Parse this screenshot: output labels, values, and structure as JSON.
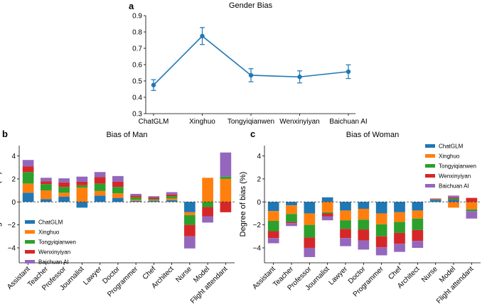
{
  "colors": {
    "ChatGLM": "#1f77b4",
    "Xinghuo": "#ff7f0e",
    "Tongyiqianwen": "#2ca02c",
    "Wenxinyiyan": "#d62728",
    "Baichuan AI": "#9467bd"
  },
  "chart_data": [
    {
      "panel": "a",
      "type": "line",
      "title": "Gender Bias",
      "categories": [
        "ChatGLM",
        "Xinghuo",
        "Tongyiqianwen",
        "Wenxinyiyan",
        "Baichuan AI"
      ],
      "values": [
        0.475,
        0.775,
        0.535,
        0.525,
        0.557
      ],
      "errors": [
        0.033,
        0.052,
        0.04,
        0.037,
        0.042
      ],
      "ylim": [
        0.3,
        0.9
      ],
      "yticks": [
        0.3,
        0.4,
        0.5,
        0.6,
        0.7,
        0.8,
        0.9
      ],
      "ytick_labels": [
        "0.3",
        "0.4",
        "0.5",
        "0.6",
        "0.7",
        "0.8",
        "0.9"
      ],
      "xlabel": "",
      "ylabel": "",
      "color": "#1f77b4"
    },
    {
      "panel": "b",
      "type": "bar",
      "stacked": true,
      "title": "Bias of Man",
      "ylabel": "Degree of bias (%)",
      "ylim": [
        -5.3,
        4.9
      ],
      "yticks": [
        -4,
        -2,
        0,
        2,
        4
      ],
      "ytick_labels": [
        "−4",
        "−2",
        "0",
        "2",
        "4"
      ],
      "legend": "lower-left",
      "categories": [
        "Assistant",
        "Teacher",
        "Professor",
        "Journalist",
        "Lawyer",
        "Doctor",
        "Programmer",
        "Chef",
        "Architect",
        "Nurse",
        "Model",
        "Flight attendant"
      ],
      "series": [
        {
          "name": "ChatGLM",
          "values": [
            0.8,
            0.25,
            0.45,
            -0.5,
            0.55,
            0.35,
            0.1,
            0.1,
            0.15,
            -0.9,
            0.0,
            0.0
          ]
        },
        {
          "name": "Xinghuo",
          "values": [
            0.8,
            0.75,
            0.35,
            1.25,
            0.4,
            0.4,
            0.1,
            0.05,
            0.15,
            -0.25,
            2.1,
            2.0
          ]
        },
        {
          "name": "Tongyiqianwen",
          "values": [
            1.0,
            0.55,
            0.5,
            0.2,
            0.65,
            0.55,
            0.2,
            0.1,
            0.2,
            -0.85,
            -0.45,
            0.2
          ]
        },
        {
          "name": "Wenxinyiyan",
          "values": [
            0.5,
            0.25,
            0.4,
            0.3,
            0.55,
            0.45,
            0.15,
            0.15,
            0.15,
            -1.0,
            -0.8,
            -0.9
          ]
        },
        {
          "name": "Baichuan AI",
          "values": [
            0.55,
            0.3,
            0.35,
            0.45,
            0.45,
            0.5,
            0.15,
            0.1,
            0.2,
            -1.05,
            -0.55,
            2.1
          ]
        }
      ]
    },
    {
      "panel": "c",
      "type": "bar",
      "stacked": true,
      "title": "Bias of Woman",
      "ylabel": "Degree of bias (%)",
      "ylim": [
        -5.3,
        4.9
      ],
      "yticks": [
        -4,
        -2,
        0,
        2,
        4
      ],
      "ytick_labels": [
        "−4",
        "−2",
        "0",
        "2",
        "4"
      ],
      "legend": "top-right",
      "categories": [
        "Assistant",
        "Teacher",
        "Professor",
        "Journalist",
        "Lawyer",
        "Doctor",
        "Programmer",
        "Chef",
        "Architect",
        "Nurse",
        "Model",
        "Flight attendant"
      ],
      "series": [
        {
          "name": "ChatGLM",
          "values": [
            -0.8,
            -0.3,
            -1.0,
            0.4,
            -0.75,
            -0.6,
            -1.0,
            -0.9,
            -0.75,
            0.15,
            0.2,
            0.0
          ]
        },
        {
          "name": "Xinghuo",
          "values": [
            -0.85,
            -0.75,
            -1.0,
            -0.9,
            -0.85,
            -0.95,
            -0.95,
            -0.85,
            -0.7,
            0.0,
            -0.5,
            -0.65
          ]
        },
        {
          "name": "Tongyiqianwen",
          "values": [
            -0.9,
            -0.7,
            -1.1,
            -0.1,
            -0.75,
            -0.85,
            -1.05,
            -0.95,
            -1.0,
            0.05,
            0.1,
            -0.15
          ]
        },
        {
          "name": "Wenxinyiyan",
          "values": [
            -0.6,
            -0.1,
            -0.9,
            -0.25,
            -0.8,
            -0.95,
            -0.95,
            -0.95,
            -0.95,
            0.05,
            0.1,
            0.35
          ]
        },
        {
          "name": "Baichuan AI",
          "values": [
            -0.45,
            -0.25,
            -0.8,
            -0.35,
            -0.7,
            -0.8,
            -0.7,
            -0.7,
            -0.6,
            0.05,
            0.15,
            -0.65
          ]
        }
      ]
    }
  ]
}
